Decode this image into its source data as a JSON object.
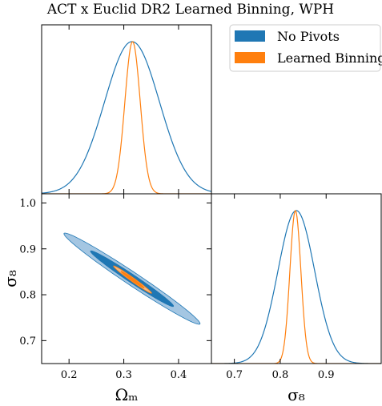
{
  "chart_data": {
    "type": "corner",
    "title": "ACT x Euclid DR2 Learned Binning, WPH",
    "params": [
      "Ω_m",
      "σ_8"
    ],
    "axis_labels": {
      "omega_m": "Ωₘ",
      "sigma8": "σ₈"
    },
    "xlim_omega_m": [
      0.15,
      0.46
    ],
    "ylim_sigma8": [
      0.65,
      1.02
    ],
    "xlim_sigma8": [
      0.65,
      1.02
    ],
    "ticks_omega_m": [
      "0.2",
      "0.3",
      "0.4"
    ],
    "tick_values_omega_m": [
      0.2,
      0.3,
      0.4
    ],
    "ticks_sigma8_y": [
      "0.7",
      "0.8",
      "0.9",
      "1.0"
    ],
    "tick_values_sigma8_y": [
      0.7,
      0.8,
      0.9,
      1.0
    ],
    "ticks_sigma8_x": [
      "0.7",
      "0.8",
      "0.9"
    ],
    "tick_values_sigma8_x": [
      0.7,
      0.8,
      0.9
    ],
    "legend_position": "top-right",
    "series": [
      {
        "name": "No Pivots",
        "color": "#1f77b4",
        "omega_m": {
          "mean": 0.315,
          "sigma": 0.05
        },
        "sigma8": {
          "mean": 0.835,
          "sigma": 0.04
        },
        "correlation": -0.985
      },
      {
        "name": "Learned Binning",
        "color": "#ff7f0e",
        "omega_m": {
          "mean": 0.316,
          "sigma": 0.014
        },
        "sigma8": {
          "mean": 0.833,
          "sigma": 0.012
        },
        "correlation": -0.985
      }
    ]
  }
}
